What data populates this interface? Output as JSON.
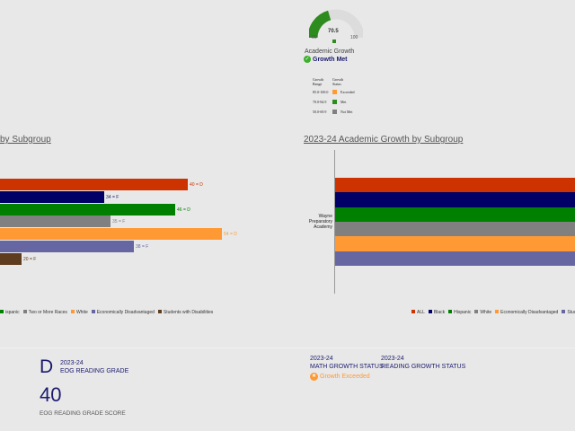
{
  "gauge": {
    "value": "70.5",
    "min": "50",
    "max": "100",
    "fraction": 0.41,
    "label": "Academic Growth",
    "status": "Growth Met",
    "color": "#2e8b1e"
  },
  "growth_table": {
    "headers": [
      "Growth Range",
      "Growth Status"
    ],
    "rows": [
      {
        "range": "85.0-100.0",
        "status": "Exceeded",
        "color": "#ff9933"
      },
      {
        "range": "70.0-84.9",
        "status": "Met",
        "color": "#2e8b1e"
      },
      {
        "range": "50.0-69.9",
        "status": "Not Met",
        "color": "#808080"
      }
    ]
  },
  "left_chart": {
    "title": "by Subgroup",
    "bars": [
      {
        "label": "40 = D",
        "color": "#cc3300"
      },
      {
        "label": "34 = F",
        "color": "#000066"
      },
      {
        "label": "46 = D",
        "color": "#008000"
      },
      {
        "label": "35 = F",
        "color": "#808080"
      },
      {
        "label": "54 = D",
        "color": "#ff9933"
      },
      {
        "label": "38 = F",
        "color": "#6666a3"
      },
      {
        "label": "20 = F",
        "color": "#5e3c1e"
      }
    ],
    "legend": [
      {
        "name": "ispanic",
        "color": "#008000"
      },
      {
        "name": "Two or More Races",
        "color": "#808080"
      },
      {
        "name": "White",
        "color": "#ff9933"
      },
      {
        "name": "Economically Disadvantaged",
        "color": "#6666a3"
      },
      {
        "name": "Students with Disabilities",
        "color": "#5e3c1e"
      }
    ]
  },
  "right_chart": {
    "title": "2023-24 Academic Growth by Subgroup",
    "category": "Wayne Preparatory Academy",
    "bars": [
      {
        "color": "#cc3300"
      },
      {
        "color": "#000066"
      },
      {
        "color": "#008000"
      },
      {
        "color": "#808080"
      },
      {
        "color": "#ff9933"
      },
      {
        "color": "#6666a3"
      }
    ],
    "legend": [
      {
        "name": "ALL",
        "color": "#cc3300"
      },
      {
        "name": "Black",
        "color": "#000066"
      },
      {
        "name": "Hispanic",
        "color": "#008000"
      },
      {
        "name": "White",
        "color": "#808080"
      },
      {
        "name": "Economically Disadvantaged",
        "color": "#ff9933"
      },
      {
        "name": "Stud",
        "color": "#6666a3"
      }
    ]
  },
  "reading": {
    "grade": "D",
    "year": "2023-24",
    "grade_label": "EOG READING GRADE",
    "score": "40",
    "score_label": "EOG READING GRADE SCORE"
  },
  "math_growth": {
    "year": "2023-24",
    "label": "MATH GROWTH STATUS",
    "status": "Growth Exceeded"
  },
  "reading_growth": {
    "year": "2023-24",
    "label": "READING GROWTH STATUS"
  }
}
